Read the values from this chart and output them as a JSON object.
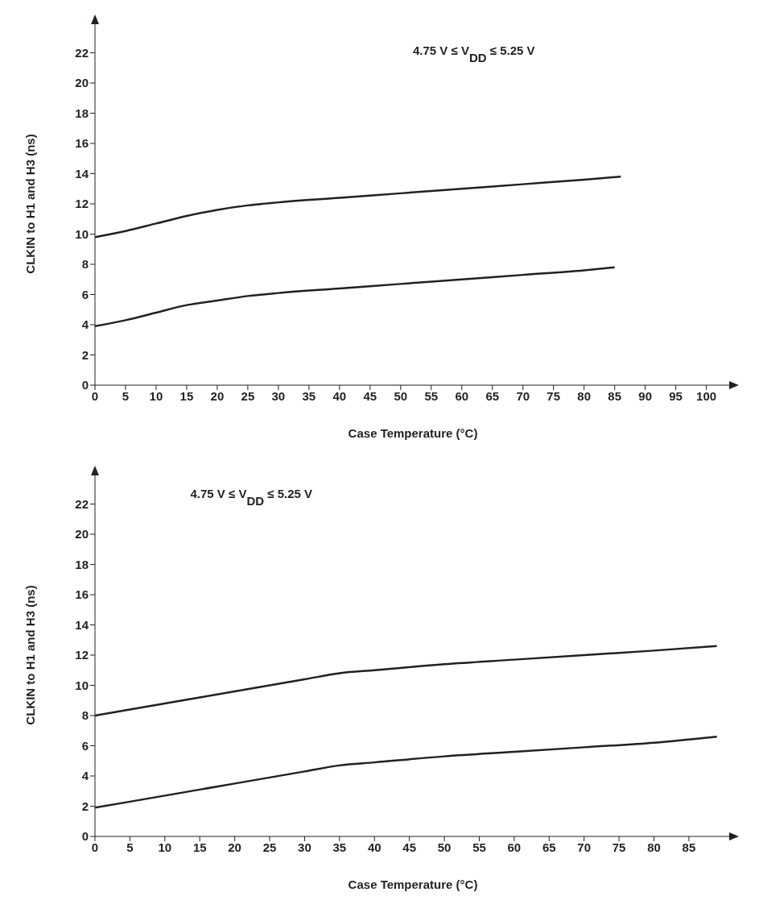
{
  "chart_data": [
    {
      "type": "line",
      "xlabel": "Case Temperature (°C)",
      "ylabel": "CLKIN to H1 and H3 (ns)",
      "annotations": [
        "4.75 V ≤ V$_{DD}$ ≤ 5.25 V"
      ],
      "xlim": [
        0,
        104
      ],
      "xticks": [
        0,
        5,
        10,
        15,
        20,
        25,
        30,
        35,
        40,
        45,
        50,
        55,
        60,
        65,
        70,
        75,
        80,
        85,
        90,
        95,
        100
      ],
      "ylim": [
        0,
        24
      ],
      "yticks": [
        0,
        2,
        4,
        6,
        8,
        10,
        12,
        14,
        16,
        18,
        20,
        22
      ],
      "grid": false,
      "legend": false,
      "marker": "none",
      "line_style": "solid",
      "series": [
        {
          "color": "#231f20",
          "x": [
            0,
            5,
            10,
            15,
            20,
            25,
            30,
            40,
            50,
            60,
            70,
            80,
            86
          ],
          "values": [
            9.8,
            10.2,
            10.7,
            11.2,
            11.6,
            11.9,
            12.1,
            12.4,
            12.7,
            13.0,
            13.3,
            13.6,
            13.8
          ]
        },
        {
          "color": "#231f20",
          "x": [
            0,
            5,
            10,
            15,
            20,
            25,
            30,
            40,
            50,
            60,
            70,
            80,
            85
          ],
          "values": [
            3.9,
            4.3,
            4.8,
            5.3,
            5.6,
            5.9,
            6.1,
            6.4,
            6.7,
            7.0,
            7.3,
            7.6,
            7.8
          ]
        }
      ]
    },
    {
      "type": "line",
      "xlabel": "Case Temperature (°C)",
      "ylabel": "CLKIN to H1 and H3 (ns)",
      "annotations": [
        "4.75 V ≤ V$_{DD}$ ≤ 5.25 V"
      ],
      "xlim": [
        0,
        91
      ],
      "xticks": [
        0,
        5,
        10,
        15,
        20,
        25,
        30,
        35,
        40,
        45,
        50,
        55,
        60,
        65,
        70,
        75,
        80,
        85
      ],
      "ylim": [
        0,
        24
      ],
      "yticks": [
        0,
        2,
        4,
        6,
        8,
        10,
        12,
        14,
        16,
        18,
        20,
        22
      ],
      "grid": false,
      "legend": false,
      "marker": "none",
      "line_style": "solid",
      "series": [
        {
          "color": "#231f20",
          "x": [
            0,
            5,
            10,
            15,
            20,
            25,
            30,
            35,
            40,
            50,
            60,
            70,
            80,
            89
          ],
          "values": [
            8.0,
            8.4,
            8.8,
            9.2,
            9.6,
            10.0,
            10.4,
            10.8,
            11.0,
            11.4,
            11.7,
            12.0,
            12.3,
            12.6
          ]
        },
        {
          "color": "#231f20",
          "x": [
            0,
            5,
            10,
            15,
            20,
            25,
            30,
            35,
            40,
            50,
            60,
            70,
            80,
            89
          ],
          "values": [
            1.9,
            2.3,
            2.7,
            3.1,
            3.5,
            3.9,
            4.3,
            4.7,
            4.9,
            5.3,
            5.6,
            5.9,
            6.2,
            6.6
          ]
        }
      ]
    }
  ]
}
